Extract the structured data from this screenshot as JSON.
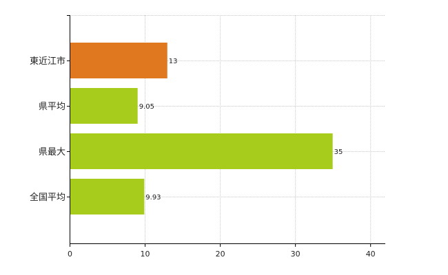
{
  "chart_data": {
    "type": "bar",
    "orientation": "horizontal",
    "categories": [
      "東近江市",
      "県平均",
      "県最大",
      "全国平均"
    ],
    "values": [
      13,
      9.05,
      35,
      9.93
    ],
    "data_labels": [
      "13",
      "9.05",
      "35",
      "9.93"
    ],
    "bar_colors": [
      "#E07820",
      "#A8CC1C",
      "#A8CC1C",
      "#A8CC1C"
    ],
    "xlim": [
      0,
      42
    ],
    "xticks": [
      0,
      10,
      20,
      30,
      40
    ],
    "xtick_labels": [
      "0",
      "10",
      "20",
      "30",
      "40"
    ],
    "grid": true,
    "grid_style": "dotted",
    "legend": "none",
    "title": "",
    "xlabel": "",
    "ylabel": ""
  }
}
